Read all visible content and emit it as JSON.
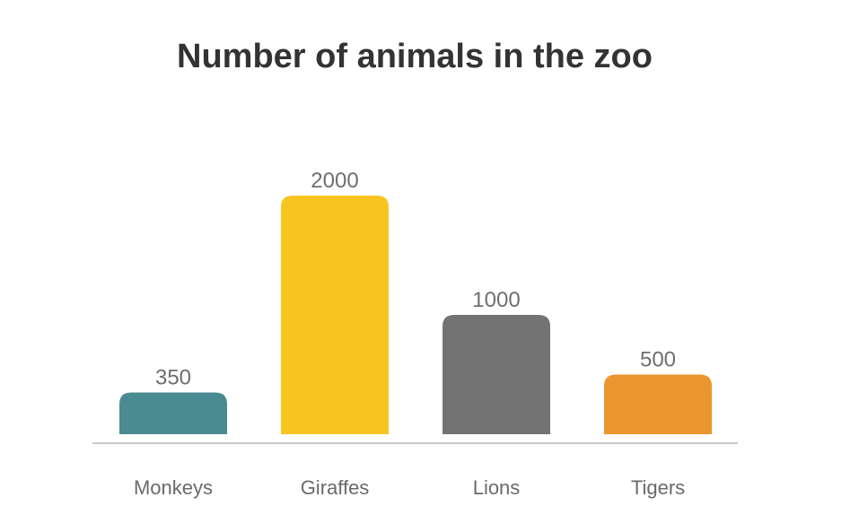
{
  "chart_data": {
    "type": "bar",
    "title": "Number of animals in the zoo",
    "categories": [
      "Monkeys",
      "Giraffes",
      "Lions",
      "Tigers"
    ],
    "values": [
      350,
      2000,
      1000,
      500
    ],
    "colors": [
      "#4a8b91",
      "#f7c522",
      "#737373",
      "#ea962e"
    ],
    "ylim": [
      0,
      2000
    ],
    "grid": false,
    "legend": "none"
  }
}
